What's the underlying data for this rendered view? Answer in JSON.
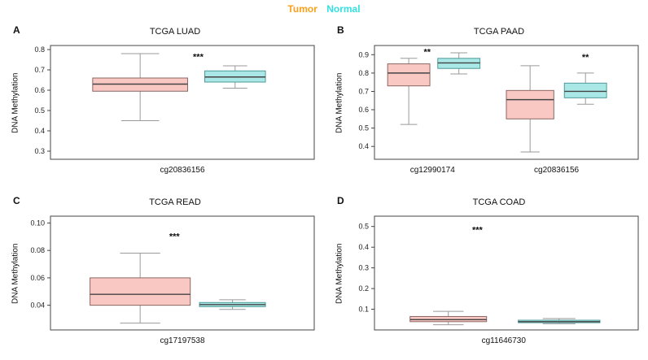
{
  "legend": {
    "tumor_label": "Tumor",
    "normal_label": "Normal",
    "tumor_color": "#F9A01B",
    "normal_color": "#35E0E0"
  },
  "colors": {
    "tumor_fill": "#F9C8C3",
    "tumor_stroke": "#8C6662",
    "normal_fill": "#A9E8E6",
    "normal_stroke": "#4E9A9A",
    "median": "#444444",
    "whisker": "#9A9A9A",
    "frame": "#444444"
  },
  "chart_data": [
    {
      "panel": "A",
      "type": "boxplot",
      "title": "TCGA LUAD",
      "ylabel": "DNA Methylation",
      "ylim": [
        0.26,
        0.82
      ],
      "yticks": [
        0.3,
        0.4,
        0.5,
        0.6,
        0.7,
        0.8
      ],
      "ytick_labels": [
        "0.3",
        "0.4",
        "0.5",
        "0.6",
        "0.7",
        "0.8"
      ],
      "groups": [
        {
          "label": "cg20836156",
          "label_x": 0.5,
          "sig": {
            "text": "***",
            "x": 0.56,
            "y": 0.75
          },
          "boxes": [
            {
              "series": "Tumor",
              "x": 0.34,
              "w": 0.36,
              "low": 0.45,
              "q1": 0.595,
              "median": 0.63,
              "q3": 0.66,
              "high": 0.78
            },
            {
              "series": "Normal",
              "x": 0.7,
              "w": 0.23,
              "low": 0.61,
              "q1": 0.64,
              "median": 0.665,
              "q3": 0.695,
              "high": 0.72
            }
          ]
        }
      ]
    },
    {
      "panel": "B",
      "type": "boxplot",
      "title": "TCGA PAAD",
      "ylabel": "DNA Methylation",
      "ylim": [
        0.33,
        0.95
      ],
      "yticks": [
        0.4,
        0.5,
        0.6,
        0.7,
        0.8,
        0.9
      ],
      "ytick_labels": [
        "0.4",
        "0.5",
        "0.6",
        "0.7",
        "0.8",
        "0.9"
      ],
      "groups": [
        {
          "label": "cg12990174",
          "label_x": 0.22,
          "sig": {
            "text": "**",
            "x": 0.2,
            "y": 0.9
          },
          "boxes": [
            {
              "series": "Tumor",
              "x": 0.13,
              "w": 0.16,
              "low": 0.52,
              "q1": 0.73,
              "median": 0.8,
              "q3": 0.85,
              "high": 0.88
            },
            {
              "series": "Normal",
              "x": 0.32,
              "w": 0.16,
              "low": 0.795,
              "q1": 0.825,
              "median": 0.855,
              "q3": 0.88,
              "high": 0.91
            }
          ]
        },
        {
          "label": "cg20836156",
          "label_x": 0.69,
          "sig": {
            "text": "**",
            "x": 0.8,
            "y": 0.87
          },
          "boxes": [
            {
              "series": "Tumor",
              "x": 0.59,
              "w": 0.18,
              "low": 0.37,
              "q1": 0.55,
              "median": 0.655,
              "q3": 0.705,
              "high": 0.84
            },
            {
              "series": "Normal",
              "x": 0.8,
              "w": 0.16,
              "low": 0.63,
              "q1": 0.665,
              "median": 0.7,
              "q3": 0.745,
              "high": 0.8
            }
          ]
        }
      ]
    },
    {
      "panel": "C",
      "type": "boxplot",
      "title": "TCGA READ",
      "ylabel": "DNA Methylation",
      "ylim": [
        0.022,
        0.105
      ],
      "yticks": [
        0.04,
        0.06,
        0.08,
        0.1
      ],
      "ytick_labels": [
        "0.04",
        "0.06",
        "0.08",
        "0.10"
      ],
      "groups": [
        {
          "label": "cg17197538",
          "label_x": 0.5,
          "sig": {
            "text": "***",
            "x": 0.47,
            "y": 0.088
          },
          "boxes": [
            {
              "series": "Tumor",
              "x": 0.34,
              "w": 0.38,
              "low": 0.027,
              "q1": 0.04,
              "median": 0.048,
              "q3": 0.06,
              "high": 0.078
            },
            {
              "series": "Normal",
              "x": 0.69,
              "w": 0.25,
              "low": 0.037,
              "q1": 0.039,
              "median": 0.0405,
              "q3": 0.042,
              "high": 0.044
            }
          ]
        }
      ]
    },
    {
      "panel": "D",
      "type": "boxplot",
      "title": "TCGA COAD",
      "ylabel": "DNA Methylation",
      "ylim": [
        0.0,
        0.55
      ],
      "yticks": [
        0.1,
        0.2,
        0.3,
        0.4,
        0.5
      ],
      "ytick_labels": [
        "0.1",
        "0.2",
        "0.3",
        "0.4",
        "0.5"
      ],
      "groups": [
        {
          "label": "cg11646730",
          "label_x": 0.49,
          "sig": {
            "text": "***",
            "x": 0.39,
            "y": 0.47
          },
          "boxes": [
            {
              "series": "Tumor",
              "x": 0.28,
              "w": 0.29,
              "low": 0.025,
              "q1": 0.04,
              "median": 0.05,
              "q3": 0.065,
              "high": 0.09
            },
            {
              "series": "Normal",
              "x": 0.7,
              "w": 0.31,
              "low": 0.03,
              "q1": 0.035,
              "median": 0.04,
              "q3": 0.047,
              "high": 0.055
            }
          ]
        }
      ]
    }
  ]
}
